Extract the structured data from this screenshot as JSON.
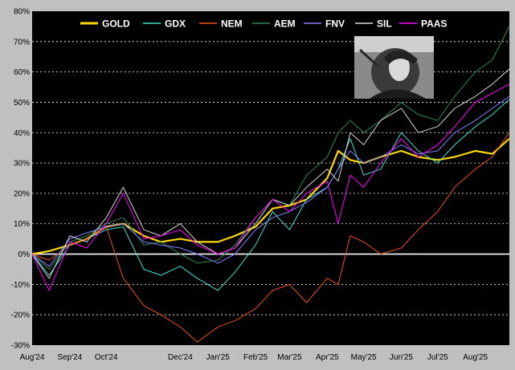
{
  "chart_data": {
    "type": "line",
    "title": "",
    "xlabel": "",
    "ylabel": "",
    "ylim": [
      -30,
      80
    ],
    "yticks": [
      -30,
      -20,
      -10,
      0,
      10,
      20,
      30,
      40,
      50,
      60,
      70,
      80
    ],
    "ytick_labels": [
      "-30%",
      "-20%",
      "-10%",
      "0%",
      "10%",
      "20%",
      "30%",
      "40%",
      "50%",
      "60%",
      "70%",
      "80%"
    ],
    "xlim": [
      "2024-08-01",
      "2025-08-29"
    ],
    "xticks": [
      "2024-08-01",
      "2024-09-01",
      "2024-10-01",
      "2024-11-01",
      "2024-12-01",
      "2025-01-01",
      "2025-02-01",
      "2025-03-01",
      "2025-04-01",
      "2025-05-01",
      "2025-06-01",
      "2025-07-01",
      "2025-08-01"
    ],
    "xtick_labels": [
      "Aug'24",
      "Sep'24",
      "Oct'24",
      "",
      "Dec'24",
      "Jan'25",
      "Feb'25",
      "Mar'25",
      "Apr'25",
      "May'25",
      "Jun'25",
      "Jul'25",
      "Aug'25"
    ],
    "grid": "horizontal dashed",
    "legend_position": "top",
    "colors": {
      "background": "#000000",
      "frame": "#c0c0c0",
      "grid": "#ffffff",
      "zero_line": "#ffffff"
    },
    "series": [
      {
        "name": "GOLD",
        "color": "#ffd700",
        "points": [
          [
            "2024-08-01",
            0
          ],
          [
            "2024-08-15",
            1
          ],
          [
            "2024-09-01",
            3
          ],
          [
            "2024-09-15",
            5
          ],
          [
            "2024-10-01",
            9
          ],
          [
            "2024-10-15",
            10
          ],
          [
            "2024-11-01",
            6
          ],
          [
            "2024-11-15",
            4
          ],
          [
            "2024-12-01",
            5
          ],
          [
            "2024-12-15",
            4
          ],
          [
            "2025-01-01",
            4
          ],
          [
            "2025-01-15",
            6
          ],
          [
            "2025-02-01",
            9
          ],
          [
            "2025-02-15",
            15
          ],
          [
            "2025-03-01",
            16
          ],
          [
            "2025-03-15",
            18
          ],
          [
            "2025-04-01",
            25
          ],
          [
            "2025-04-10",
            34
          ],
          [
            "2025-04-20",
            31
          ],
          [
            "2025-05-01",
            30
          ],
          [
            "2025-05-15",
            32
          ],
          [
            "2025-06-01",
            34
          ],
          [
            "2025-06-15",
            32
          ],
          [
            "2025-07-01",
            31
          ],
          [
            "2025-07-15",
            32
          ],
          [
            "2025-08-01",
            34
          ],
          [
            "2025-08-15",
            33
          ],
          [
            "2025-08-29",
            38
          ]
        ]
      },
      {
        "name": "GDX",
        "color": "#40e0d0",
        "points": [
          [
            "2024-08-01",
            0
          ],
          [
            "2024-08-15",
            -7
          ],
          [
            "2024-09-01",
            3
          ],
          [
            "2024-09-15",
            5
          ],
          [
            "2024-10-01",
            8
          ],
          [
            "2024-10-15",
            9
          ],
          [
            "2024-11-01",
            -5
          ],
          [
            "2024-11-15",
            -7
          ],
          [
            "2024-12-01",
            -4
          ],
          [
            "2024-12-15",
            -8
          ],
          [
            "2025-01-01",
            -12
          ],
          [
            "2025-01-15",
            -6
          ],
          [
            "2025-02-01",
            3
          ],
          [
            "2025-02-15",
            14
          ],
          [
            "2025-03-01",
            8
          ],
          [
            "2025-03-15",
            18
          ],
          [
            "2025-04-01",
            22
          ],
          [
            "2025-04-10",
            28
          ],
          [
            "2025-04-20",
            38
          ],
          [
            "2025-05-01",
            26
          ],
          [
            "2025-05-15",
            28
          ],
          [
            "2025-06-01",
            40
          ],
          [
            "2025-06-15",
            34
          ],
          [
            "2025-07-01",
            30
          ],
          [
            "2025-07-15",
            36
          ],
          [
            "2025-08-01",
            42
          ],
          [
            "2025-08-15",
            46
          ],
          [
            "2025-08-29",
            51
          ]
        ]
      },
      {
        "name": "NEM",
        "color": "#e8521c",
        "points": [
          [
            "2024-08-01",
            0
          ],
          [
            "2024-08-15",
            -2
          ],
          [
            "2024-09-01",
            3
          ],
          [
            "2024-09-15",
            5
          ],
          [
            "2024-10-01",
            9
          ],
          [
            "2024-10-15",
            -8
          ],
          [
            "2024-11-01",
            -17
          ],
          [
            "2024-11-15",
            -20
          ],
          [
            "2024-12-01",
            -24
          ],
          [
            "2024-12-15",
            -29
          ],
          [
            "2025-01-01",
            -24
          ],
          [
            "2025-01-15",
            -22
          ],
          [
            "2025-02-01",
            -18
          ],
          [
            "2025-02-15",
            -12
          ],
          [
            "2025-03-01",
            -10
          ],
          [
            "2025-03-15",
            -16
          ],
          [
            "2025-04-01",
            -8
          ],
          [
            "2025-04-10",
            -10
          ],
          [
            "2025-04-20",
            6
          ],
          [
            "2025-05-01",
            4
          ],
          [
            "2025-05-15",
            0
          ],
          [
            "2025-06-01",
            2
          ],
          [
            "2025-06-15",
            8
          ],
          [
            "2025-07-01",
            14
          ],
          [
            "2025-07-15",
            22
          ],
          [
            "2025-08-01",
            28
          ],
          [
            "2025-08-15",
            32
          ],
          [
            "2025-08-29",
            40
          ]
        ]
      },
      {
        "name": "AEM",
        "color": "#2e8b57",
        "points": [
          [
            "2024-08-01",
            0
          ],
          [
            "2024-08-15",
            -5
          ],
          [
            "2024-09-01",
            4
          ],
          [
            "2024-09-15",
            6
          ],
          [
            "2024-10-01",
            10
          ],
          [
            "2024-10-15",
            12
          ],
          [
            "2024-11-01",
            3
          ],
          [
            "2024-11-15",
            4
          ],
          [
            "2024-12-01",
            0
          ],
          [
            "2024-12-15",
            -3
          ],
          [
            "2025-01-01",
            -2
          ],
          [
            "2025-01-15",
            3
          ],
          [
            "2025-02-01",
            12
          ],
          [
            "2025-02-15",
            18
          ],
          [
            "2025-03-01",
            16
          ],
          [
            "2025-03-15",
            26
          ],
          [
            "2025-04-01",
            32
          ],
          [
            "2025-04-10",
            40
          ],
          [
            "2025-04-20",
            44
          ],
          [
            "2025-05-01",
            40
          ],
          [
            "2025-05-15",
            44
          ],
          [
            "2025-06-01",
            50
          ],
          [
            "2025-06-15",
            46
          ],
          [
            "2025-07-01",
            44
          ],
          [
            "2025-07-15",
            52
          ],
          [
            "2025-08-01",
            60
          ],
          [
            "2025-08-15",
            64
          ],
          [
            "2025-08-29",
            75
          ]
        ]
      },
      {
        "name": "FNV",
        "color": "#8080ff",
        "points": [
          [
            "2024-08-01",
            0
          ],
          [
            "2024-08-15",
            -4
          ],
          [
            "2024-09-01",
            5
          ],
          [
            "2024-09-15",
            7
          ],
          [
            "2024-10-01",
            9
          ],
          [
            "2024-10-15",
            10
          ],
          [
            "2024-11-01",
            4
          ],
          [
            "2024-11-15",
            3
          ],
          [
            "2024-12-01",
            2
          ],
          [
            "2024-12-15",
            0
          ],
          [
            "2025-01-01",
            -3
          ],
          [
            "2025-01-15",
            0
          ],
          [
            "2025-02-01",
            8
          ],
          [
            "2025-02-15",
            12
          ],
          [
            "2025-03-01",
            14
          ],
          [
            "2025-03-15",
            17
          ],
          [
            "2025-04-01",
            22
          ],
          [
            "2025-04-10",
            28
          ],
          [
            "2025-04-20",
            34
          ],
          [
            "2025-05-01",
            30
          ],
          [
            "2025-05-15",
            32
          ],
          [
            "2025-06-01",
            36
          ],
          [
            "2025-06-15",
            33
          ],
          [
            "2025-07-01",
            34
          ],
          [
            "2025-07-15",
            40
          ],
          [
            "2025-08-01",
            44
          ],
          [
            "2025-08-15",
            48
          ],
          [
            "2025-08-29",
            52
          ]
        ]
      },
      {
        "name": "SIL",
        "color": "#d8d8d8",
        "points": [
          [
            "2024-08-01",
            0
          ],
          [
            "2024-08-15",
            -8
          ],
          [
            "2024-09-01",
            6
          ],
          [
            "2024-09-15",
            4
          ],
          [
            "2024-10-01",
            12
          ],
          [
            "2024-10-15",
            22
          ],
          [
            "2024-11-01",
            8
          ],
          [
            "2024-11-15",
            6
          ],
          [
            "2024-12-01",
            10
          ],
          [
            "2024-12-15",
            4
          ],
          [
            "2025-01-01",
            0
          ],
          [
            "2025-01-15",
            2
          ],
          [
            "2025-02-01",
            10
          ],
          [
            "2025-02-15",
            18
          ],
          [
            "2025-03-01",
            16
          ],
          [
            "2025-03-15",
            22
          ],
          [
            "2025-04-01",
            28
          ],
          [
            "2025-04-10",
            24
          ],
          [
            "2025-04-20",
            40
          ],
          [
            "2025-05-01",
            36
          ],
          [
            "2025-05-15",
            44
          ],
          [
            "2025-06-01",
            48
          ],
          [
            "2025-06-15",
            40
          ],
          [
            "2025-07-01",
            42
          ],
          [
            "2025-07-15",
            48
          ],
          [
            "2025-08-01",
            52
          ],
          [
            "2025-08-15",
            56
          ],
          [
            "2025-08-29",
            61
          ]
        ]
      },
      {
        "name": "PAAS",
        "color": "#ff00ff",
        "points": [
          [
            "2024-08-01",
            0
          ],
          [
            "2024-08-15",
            -12
          ],
          [
            "2024-09-01",
            4
          ],
          [
            "2024-09-15",
            2
          ],
          [
            "2024-10-01",
            10
          ],
          [
            "2024-10-15",
            20
          ],
          [
            "2024-11-01",
            5
          ],
          [
            "2024-11-15",
            6
          ],
          [
            "2024-12-01",
            8
          ],
          [
            "2024-12-15",
            3
          ],
          [
            "2025-01-01",
            0
          ],
          [
            "2025-01-15",
            2
          ],
          [
            "2025-02-01",
            12
          ],
          [
            "2025-02-15",
            18
          ],
          [
            "2025-03-01",
            14
          ],
          [
            "2025-03-15",
            20
          ],
          [
            "2025-04-01",
            24
          ],
          [
            "2025-04-10",
            10
          ],
          [
            "2025-04-20",
            26
          ],
          [
            "2025-05-01",
            22
          ],
          [
            "2025-05-15",
            30
          ],
          [
            "2025-06-01",
            38
          ],
          [
            "2025-06-15",
            32
          ],
          [
            "2025-07-01",
            36
          ],
          [
            "2025-07-15",
            42
          ],
          [
            "2025-08-01",
            50
          ],
          [
            "2025-08-15",
            53
          ],
          [
            "2025-08-29",
            56
          ]
        ]
      }
    ]
  }
}
